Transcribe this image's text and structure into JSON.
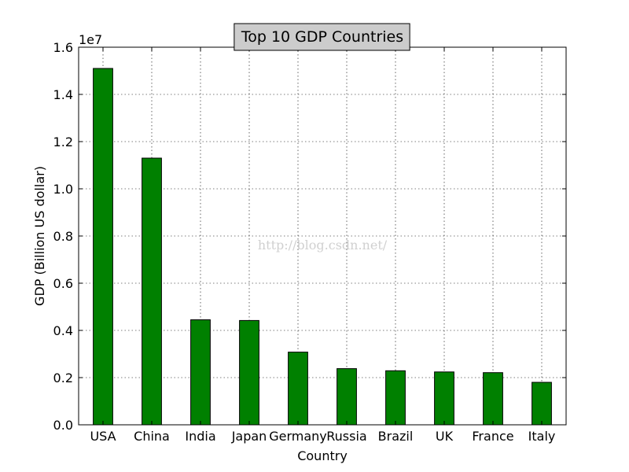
{
  "chart_data": {
    "type": "bar",
    "title": "Top 10 GDP Countries",
    "xlabel": "Country",
    "ylabel": "GDP (Billion US dollar)",
    "y_scale_label": "1e7",
    "y_tick_values": [
      0.0,
      0.2,
      0.4,
      0.6,
      0.8,
      1.0,
      1.2,
      1.4,
      1.6
    ],
    "y_tick_labels": [
      "0.0",
      "0.2",
      "0.4",
      "0.6",
      "0.8",
      "1.0",
      "1.2",
      "1.4",
      "1.6"
    ],
    "ylim": [
      0,
      1.6
    ],
    "categories": [
      "USA",
      "China",
      "India",
      "Japan",
      "Germany",
      "Russia",
      "Brazil",
      "UK",
      "France",
      "Italy"
    ],
    "values": [
      1.51,
      1.13,
      0.445,
      0.442,
      0.308,
      0.238,
      0.229,
      0.224,
      0.221,
      0.18
    ],
    "bar_color": "#008000",
    "grid": true,
    "title_box_color": "#cccccc"
  },
  "watermark": "http://blog.csdn.net/"
}
